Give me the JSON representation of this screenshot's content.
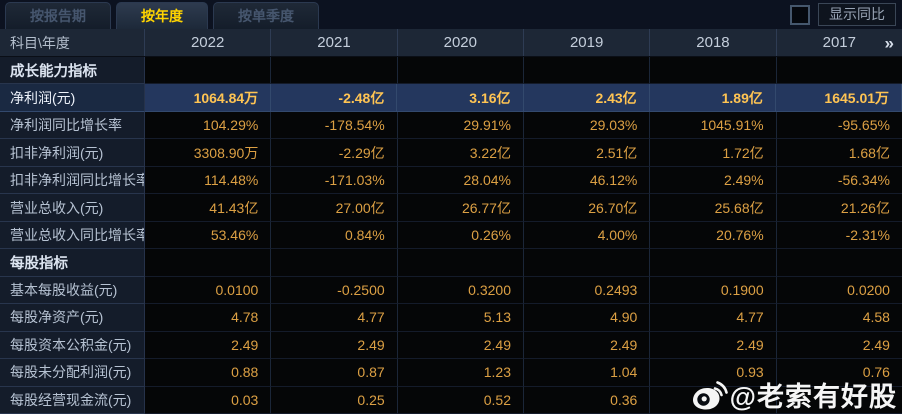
{
  "tabs": [
    {
      "label": "按报告期",
      "active": false
    },
    {
      "label": "按年度",
      "active": true
    },
    {
      "label": "按单季度",
      "active": false
    }
  ],
  "controls": {
    "show_yoy_label": "显示同比",
    "checkbox_checked": false
  },
  "table": {
    "corner_label": "科目\\年度",
    "years": [
      "2022",
      "2021",
      "2020",
      "2019",
      "2018",
      "2017"
    ],
    "more_icon": "»",
    "rows": [
      {
        "type": "section",
        "label": "成长能力指标"
      },
      {
        "type": "data",
        "highlight": true,
        "label": "净利润(元)",
        "values": [
          "1064.84万",
          "-2.48亿",
          "3.16亿",
          "2.43亿",
          "1.89亿",
          "1645.01万"
        ]
      },
      {
        "type": "data",
        "highlight": false,
        "label": "净利润同比增长率",
        "values": [
          "104.29%",
          "-178.54%",
          "29.91%",
          "29.03%",
          "1045.91%",
          "-95.65%"
        ]
      },
      {
        "type": "data",
        "highlight": false,
        "label": "扣非净利润(元)",
        "values": [
          "3308.90万",
          "-2.29亿",
          "3.22亿",
          "2.51亿",
          "1.72亿",
          "1.68亿"
        ]
      },
      {
        "type": "data",
        "highlight": false,
        "label": "扣非净利润同比增长率",
        "values": [
          "114.48%",
          "-171.03%",
          "28.04%",
          "46.12%",
          "2.49%",
          "-56.34%"
        ]
      },
      {
        "type": "data",
        "highlight": false,
        "label": "营业总收入(元)",
        "values": [
          "41.43亿",
          "27.00亿",
          "26.77亿",
          "26.70亿",
          "25.68亿",
          "21.26亿"
        ]
      },
      {
        "type": "data",
        "highlight": false,
        "label": "营业总收入同比增长率",
        "values": [
          "53.46%",
          "0.84%",
          "0.26%",
          "4.00%",
          "20.76%",
          "-2.31%"
        ]
      },
      {
        "type": "section",
        "label": "每股指标"
      },
      {
        "type": "data",
        "highlight": false,
        "label": "基本每股收益(元)",
        "values": [
          "0.0100",
          "-0.2500",
          "0.3200",
          "0.2493",
          "0.1900",
          "0.0200"
        ]
      },
      {
        "type": "data",
        "highlight": false,
        "label": "每股净资产(元)",
        "values": [
          "4.78",
          "4.77",
          "5.13",
          "4.90",
          "4.77",
          "4.58"
        ]
      },
      {
        "type": "data",
        "highlight": false,
        "label": "每股资本公积金(元)",
        "values": [
          "2.49",
          "2.49",
          "2.49",
          "2.49",
          "2.49",
          "2.49"
        ]
      },
      {
        "type": "data",
        "highlight": false,
        "label": "每股未分配利润(元)",
        "values": [
          "0.88",
          "0.87",
          "1.23",
          "1.04",
          "0.93",
          "0.76"
        ]
      },
      {
        "type": "data",
        "highlight": false,
        "label": "每股经营现金流(元)",
        "values": [
          "0.03",
          "0.25",
          "0.52",
          "0.36",
          "",
          ""
        ]
      }
    ]
  },
  "watermark": {
    "icon": "weibo-icon",
    "text": "@老索有好股"
  },
  "colors": {
    "accent_yellow": "#ffd400",
    "value_orange": "#dca044",
    "highlight_value": "#ffc453",
    "highlight_row_bg": "#24375e",
    "header_bg": "#1d2736",
    "label_col_bg": "#141c2a",
    "cell_bg": "#050607"
  }
}
